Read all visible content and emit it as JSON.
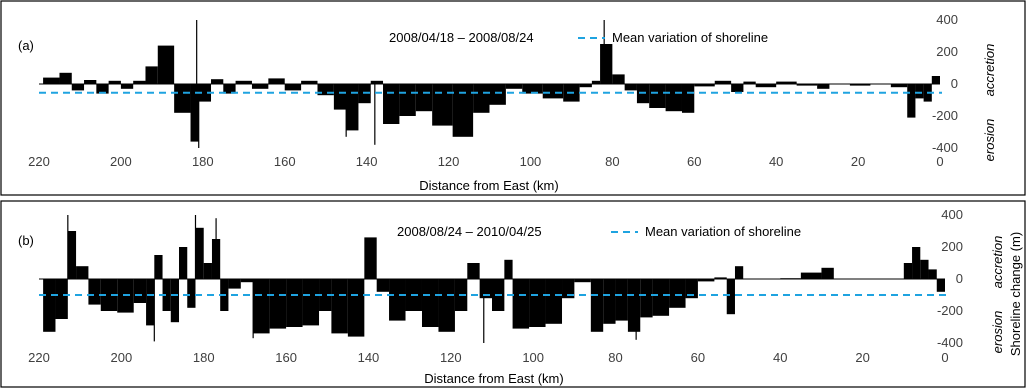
{
  "colors": {
    "mean_line": "#1fa3e0",
    "bars": "#000000"
  },
  "ylabel_shared": "Shoreline change (m)",
  "chart_data": [
    {
      "type": "bar",
      "panel_label": "(a)",
      "period": "2008/04/18 – 2008/08/24",
      "legend": "Mean variation of shoreline",
      "xlabel": "Distance from East (km)",
      "xlim": [
        220,
        0
      ],
      "ylim": [
        -400,
        400
      ],
      "xticks": [
        "220",
        "200",
        "180",
        "160",
        "140",
        "120",
        "100",
        "80",
        "60",
        "40",
        "20",
        "0"
      ],
      "yticks": [
        "400",
        "200",
        "0",
        "-200",
        "-400"
      ],
      "accretion_label": "accretion",
      "erosion_label": "erosion",
      "mean_value": -55,
      "segments": [
        [
          219,
          215,
          40
        ],
        [
          215,
          212,
          70
        ],
        [
          212,
          209,
          -40
        ],
        [
          209,
          206,
          25
        ],
        [
          206,
          203,
          -60
        ],
        [
          203,
          200,
          20
        ],
        [
          200,
          197,
          -30
        ],
        [
          197,
          194,
          20
        ],
        [
          194,
          191,
          110
        ],
        [
          191,
          187,
          240
        ],
        [
          187,
          183,
          -180
        ],
        [
          183,
          181,
          -360
        ],
        [
          181,
          178,
          -110
        ],
        [
          178,
          175,
          30
        ],
        [
          175,
          172,
          -60
        ],
        [
          172,
          168,
          20
        ],
        [
          168,
          164,
          -30
        ],
        [
          164,
          160,
          35
        ],
        [
          160,
          156,
          -40
        ],
        [
          156,
          152,
          20
        ],
        [
          152,
          148,
          -70
        ],
        [
          148,
          145,
          -160
        ],
        [
          145,
          142,
          -290
        ],
        [
          142,
          139,
          -120
        ],
        [
          139,
          136,
          20
        ],
        [
          136,
          132,
          -250
        ],
        [
          132,
          128,
          -200
        ],
        [
          128,
          124,
          -170
        ],
        [
          124,
          119,
          -260
        ],
        [
          119,
          114,
          -330
        ],
        [
          114,
          110,
          -180
        ],
        [
          110,
          106,
          -130
        ],
        [
          106,
          102,
          -30
        ],
        [
          102,
          97,
          -60
        ],
        [
          97,
          92,
          -90
        ],
        [
          92,
          88,
          -110
        ],
        [
          88,
          85,
          -20
        ],
        [
          85,
          83,
          20
        ],
        [
          83,
          80,
          250
        ],
        [
          80,
          77,
          60
        ],
        [
          77,
          74,
          -40
        ],
        [
          74,
          71,
          -120
        ],
        [
          71,
          67,
          -150
        ],
        [
          67,
          63,
          -170
        ],
        [
          63,
          60,
          -180
        ],
        [
          60,
          55,
          -15
        ],
        [
          55,
          51,
          20
        ],
        [
          51,
          48,
          -50
        ],
        [
          48,
          45,
          15
        ],
        [
          45,
          40,
          -20
        ],
        [
          40,
          35,
          15
        ],
        [
          35,
          30,
          -10
        ],
        [
          30,
          27,
          -30
        ],
        [
          27,
          22,
          0
        ],
        [
          22,
          17,
          -10
        ],
        [
          17,
          12,
          0
        ],
        [
          12,
          8,
          -20
        ],
        [
          8,
          6,
          -210
        ],
        [
          6,
          4,
          -90
        ],
        [
          4,
          2,
          -110
        ],
        [
          2,
          0,
          50
        ]
      ],
      "spikes": [
        [
          181.5,
          400
        ],
        [
          181,
          -400
        ],
        [
          138,
          -380
        ],
        [
          82,
          400
        ],
        [
          145,
          -330
        ]
      ]
    },
    {
      "type": "bar",
      "panel_label": "(b)",
      "period": "2008/08/24 – 2010/04/25",
      "legend": "Mean variation of shoreline",
      "xlabel": "Distance from East (km)",
      "xlim": [
        220,
        0
      ],
      "ylim": [
        -400,
        400
      ],
      "xticks": [
        "220",
        "200",
        "180",
        "160",
        "140",
        "120",
        "100",
        "80",
        "60",
        "40",
        "20",
        "0"
      ],
      "yticks": [
        "400",
        "200",
        "0",
        "-200",
        "-400"
      ],
      "accretion_label": "accretion",
      "erosion_label": "erosion",
      "mean_value": -100,
      "segments": [
        [
          219,
          216,
          -330
        ],
        [
          216,
          213,
          -250
        ],
        [
          213,
          211,
          300
        ],
        [
          211,
          208,
          80
        ],
        [
          208,
          205,
          -160
        ],
        [
          205,
          201,
          -200
        ],
        [
          201,
          197,
          -210
        ],
        [
          197,
          194,
          -150
        ],
        [
          194,
          192,
          -290
        ],
        [
          192,
          190,
          150
        ],
        [
          190,
          188,
          -200
        ],
        [
          188,
          186,
          -270
        ],
        [
          186,
          184,
          200
        ],
        [
          184,
          182,
          -180
        ],
        [
          182,
          180,
          320
        ],
        [
          180,
          178,
          100
        ],
        [
          178,
          176,
          250
        ],
        [
          176,
          174,
          -200
        ],
        [
          174,
          171,
          -60
        ],
        [
          171,
          168,
          -20
        ],
        [
          168,
          164,
          -340
        ],
        [
          164,
          160,
          -310
        ],
        [
          160,
          156,
          -300
        ],
        [
          156,
          152,
          -290
        ],
        [
          152,
          149,
          -200
        ],
        [
          149,
          145,
          -340
        ],
        [
          145,
          141,
          -360
        ],
        [
          141,
          138,
          260
        ],
        [
          138,
          135,
          -80
        ],
        [
          135,
          131,
          -260
        ],
        [
          131,
          127,
          -200
        ],
        [
          127,
          123,
          -300
        ],
        [
          123,
          119,
          -330
        ],
        [
          119,
          116,
          -200
        ],
        [
          116,
          113,
          100
        ],
        [
          113,
          110,
          -120
        ],
        [
          110,
          107,
          -200
        ],
        [
          107,
          105,
          120
        ],
        [
          105,
          101,
          -310
        ],
        [
          101,
          97,
          -300
        ],
        [
          97,
          93,
          -280
        ],
        [
          93,
          90,
          -120
        ],
        [
          90,
          86,
          -20
        ],
        [
          86,
          83,
          -330
        ],
        [
          83,
          80,
          -280
        ],
        [
          80,
          77,
          -260
        ],
        [
          77,
          74,
          -330
        ],
        [
          74,
          71,
          -240
        ],
        [
          71,
          67,
          -230
        ],
        [
          67,
          63,
          -180
        ],
        [
          63,
          60,
          -120
        ],
        [
          60,
          56,
          -15
        ],
        [
          56,
          53,
          10
        ],
        [
          53,
          51,
          -220
        ],
        [
          51,
          49,
          80
        ],
        [
          49,
          40,
          0
        ],
        [
          40,
          35,
          5
        ],
        [
          35,
          30,
          40
        ],
        [
          30,
          27,
          70
        ],
        [
          27,
          20,
          0
        ],
        [
          20,
          10,
          0
        ],
        [
          10,
          8,
          100
        ],
        [
          8,
          6,
          200
        ],
        [
          6,
          4,
          120
        ],
        [
          4,
          2,
          60
        ],
        [
          2,
          0,
          -80
        ]
      ],
      "spikes": [
        [
          213,
          400
        ],
        [
          182,
          400
        ],
        [
          177,
          380
        ],
        [
          168,
          -370
        ],
        [
          112,
          -400
        ],
        [
          75,
          -380
        ],
        [
          192,
          -390
        ]
      ]
    }
  ]
}
